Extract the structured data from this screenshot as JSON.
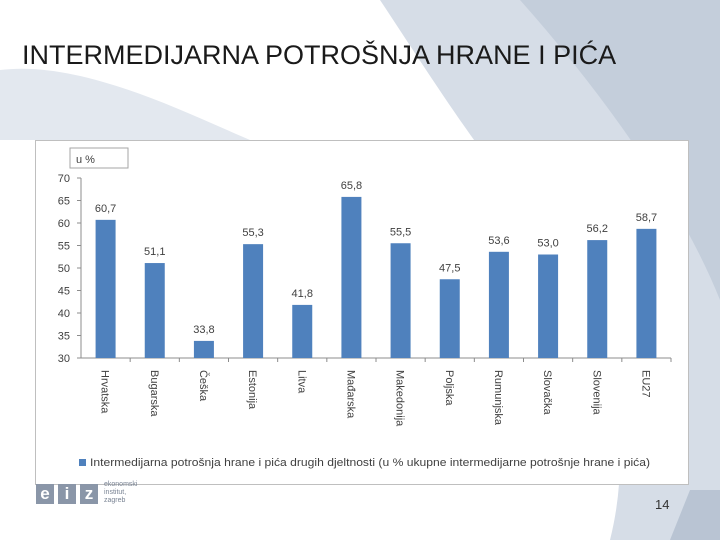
{
  "slide": {
    "title": "INTERMEDIJARNA POTROŠNJA HRANE I PIĆA",
    "page_number": "14",
    "logo": {
      "letters": [
        "e",
        "i",
        "z"
      ],
      "text_lines": [
        "ekonomski",
        "institut,",
        "zagreb"
      ]
    }
  },
  "colors": {
    "bar": "#4f81bd",
    "title": "#1a1a1a",
    "background_decor": "#c9d2df"
  },
  "chart_data": {
    "type": "bar",
    "unit_label": "u %",
    "categories": [
      "Hrvatska",
      "Bugarska",
      "Češka",
      "Estonija",
      "Litva",
      "Mađarska",
      "Makedonija",
      "Poljska",
      "Rumunjska",
      "Slovačka",
      "Slovenija",
      "EU27"
    ],
    "series": [
      {
        "name": "Intermedijarna potrošnja hrane i pića drugih djeltnosti (u % ukupne intermedijarne potrošnje hrane i pića)",
        "values": [
          60.7,
          51.1,
          33.8,
          55.3,
          41.8,
          65.8,
          55.5,
          47.5,
          53.6,
          53.0,
          56.2,
          58.7
        ]
      }
    ],
    "data_labels": [
      "60,7",
      "51,1",
      "33,8",
      "55,3",
      "41,8",
      "65,8",
      "55,5",
      "47,5",
      "53,6",
      "53,0",
      "56,2",
      "58,7"
    ],
    "ylim": [
      30,
      70
    ],
    "yticks": [
      30,
      35,
      40,
      45,
      50,
      55,
      60,
      65,
      70
    ],
    "grid": false,
    "legend_position": "bottom"
  }
}
